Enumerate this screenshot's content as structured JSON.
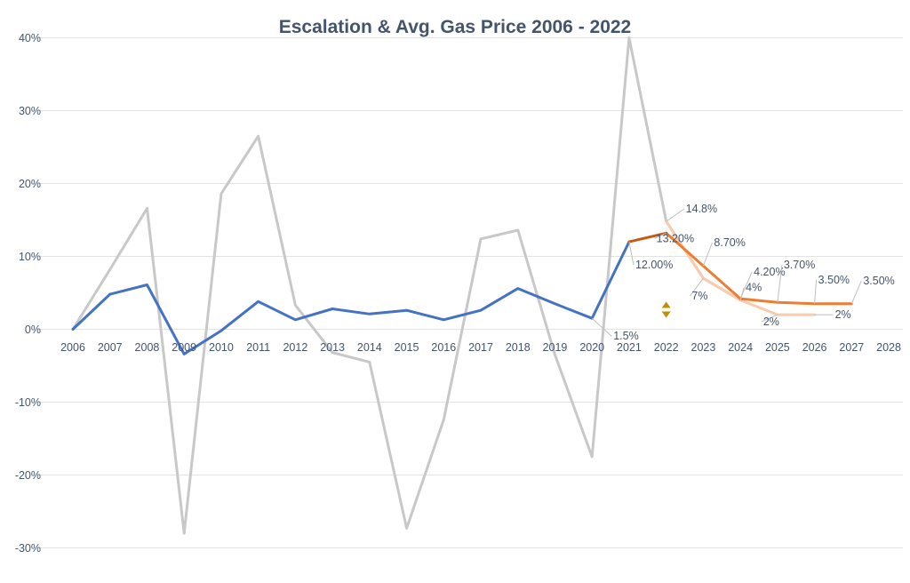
{
  "chart_data": {
    "type": "line",
    "title": "Escalation & Avg. Gas Price 2006 - 2022",
    "categories": [
      "2006",
      "2007",
      "2008",
      "2009",
      "2010",
      "2011",
      "2012",
      "2013",
      "2014",
      "2015",
      "2016",
      "2017",
      "2018",
      "2019",
      "2020",
      "2021",
      "2022",
      "2023",
      "2024",
      "2025",
      "2026",
      "2027",
      "2028"
    ],
    "ylim": [
      -30,
      40
    ],
    "yticks": [
      -30,
      -20,
      -10,
      0,
      10,
      20,
      30,
      40
    ],
    "ytick_labels": [
      "-30%",
      "-20%",
      "-10%",
      "0%",
      "10%",
      "20%",
      "30%",
      "40%"
    ],
    "grid": true,
    "colors": {
      "gas_price": "#c8c8c8",
      "escalation": "#4472c4",
      "forecast_dark": "#c55a11",
      "forecast_high": "#ed7d31",
      "forecast_low": "#f8cbad",
      "marker": "#bf9000"
    },
    "series": [
      {
        "key": "gas_price",
        "x": [
          "2006",
          "2007",
          "2008",
          "2009",
          "2010",
          "2011",
          "2012",
          "2013",
          "2014",
          "2015",
          "2016",
          "2017",
          "2018",
          "2019",
          "2020",
          "2021",
          "2022",
          "2023",
          "2024"
        ],
        "values": [
          0,
          8.2,
          16.6,
          -28,
          18.6,
          26.5,
          3.3,
          -3.2,
          -4.5,
          -27.3,
          -12.4,
          12.4,
          13.6,
          -3.5,
          -17.5,
          40,
          14.8,
          7,
          4
        ]
      },
      {
        "key": "escalation",
        "x": [
          "2006",
          "2007",
          "2008",
          "2009",
          "2010",
          "2011",
          "2012",
          "2013",
          "2014",
          "2015",
          "2016",
          "2017",
          "2018",
          "2019",
          "2020",
          "2021"
        ],
        "values": [
          0,
          4.8,
          6.1,
          -3.4,
          -0.2,
          3.8,
          1.3,
          2.8,
          2.1,
          2.6,
          1.3,
          2.6,
          5.6,
          3.5,
          1.5,
          12.0
        ]
      },
      {
        "key": "forecast_dark",
        "x": [
          "2021",
          "2022"
        ],
        "values": [
          12.0,
          13.2
        ]
      },
      {
        "key": "forecast_high",
        "x": [
          "2022",
          "2023",
          "2024",
          "2025",
          "2026",
          "2027"
        ],
        "values": [
          13.2,
          8.7,
          4.2,
          3.7,
          3.5,
          3.5
        ]
      },
      {
        "key": "forecast_low",
        "x": [
          "2022",
          "2023",
          "2024",
          "2025",
          "2026"
        ],
        "values": [
          14.8,
          7,
          4,
          2,
          2
        ]
      }
    ],
    "data_labels": [
      {
        "text": "14.8%",
        "x": "2022",
        "y": 14.8
      },
      {
        "text": "8.70%",
        "x": "2023",
        "y": 8.7
      },
      {
        "text": "13.20%",
        "x": "2022",
        "y": 13.2
      },
      {
        "text": "12.00%",
        "x": "2021",
        "y": 12.0
      },
      {
        "text": "1.5%",
        "x": "2020",
        "y": 1.5
      },
      {
        "text": "7%",
        "x": "2023",
        "y": 7
      },
      {
        "text": "4.20%",
        "x": "2024",
        "y": 4.2
      },
      {
        "text": "3.70%",
        "x": "2025",
        "y": 3.7
      },
      {
        "text": "4%",
        "x": "2024",
        "y": 4
      },
      {
        "text": "3.50%",
        "x": "2026",
        "y": 3.5
      },
      {
        "text": "3.50%",
        "x": "2027",
        "y": 3.5
      },
      {
        "text": "2%",
        "x": "2025",
        "y": 2
      },
      {
        "text": "2%",
        "x": "2026",
        "y": 2
      }
    ],
    "marker": {
      "symbol": "up-down-arrows",
      "x": "2022",
      "y": 2.8
    }
  }
}
